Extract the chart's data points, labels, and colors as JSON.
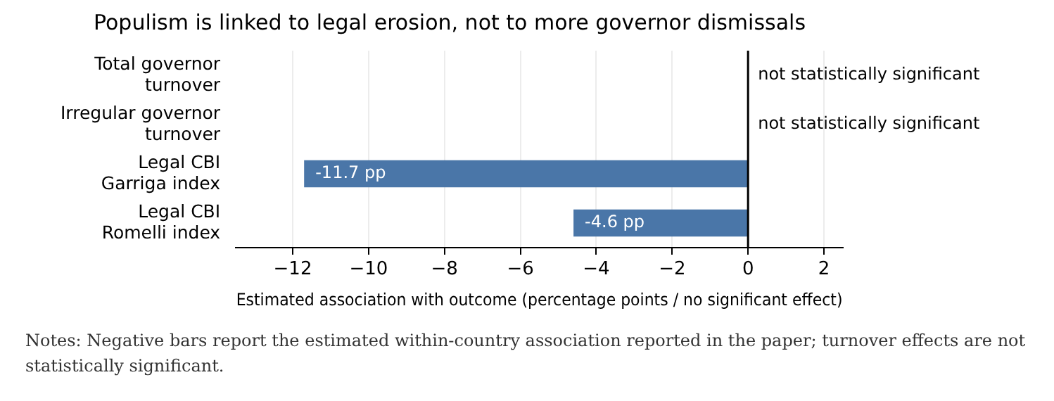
{
  "chart_data": {
    "type": "bar",
    "orientation": "horizontal",
    "title": "Populism is linked to legal erosion, not to more governor dismissals",
    "categories": [
      "Total governor\nturnover",
      "Irregular governor\nturnover",
      "Legal CBI\nGarriga index",
      "Legal CBI\nRomelli index"
    ],
    "values": [
      null,
      null,
      -11.7,
      -4.6
    ],
    "value_labels": [
      "not statistically significant",
      "not statistically significant",
      "-11.7 pp",
      "-4.6 pp"
    ],
    "color": "#4a76a8",
    "xlabel": "Estimated association with outcome (percentage points / no significant effect)",
    "xlim": [
      -13.5,
      2.5
    ],
    "xticks": [
      {
        "value": -12,
        "label": "−12"
      },
      {
        "value": -10,
        "label": "−10"
      },
      {
        "value": -8,
        "label": "−8"
      },
      {
        "value": -6,
        "label": "−6"
      },
      {
        "value": -4,
        "label": "−4"
      },
      {
        "value": -2,
        "label": "−2"
      },
      0,
      2
    ],
    "grid": "x",
    "ref_lines": [
      {
        "axis": "x",
        "value": 0,
        "color": "#000000"
      }
    ],
    "annotations": [
      "Notes: Negative bars report the estimated within-country association reported in the paper; turnover effects are not statistically significant."
    ]
  }
}
